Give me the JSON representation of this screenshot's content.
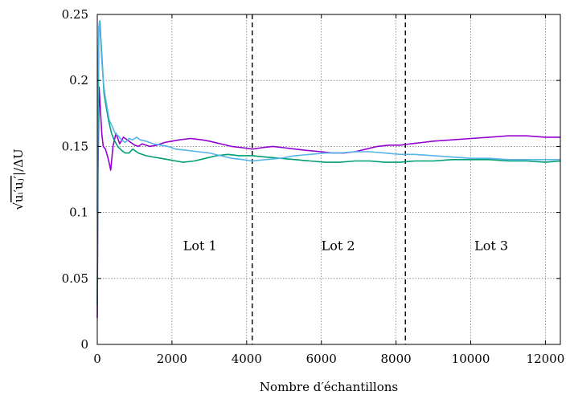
{
  "chart_data": {
    "type": "line",
    "title": "",
    "xlabel": "Nombre d′échantillons",
    "ylabel_parts": {
      "root": "√",
      "bar_content": "uᵢ′uⱼ′",
      "tail": "|/ΔU"
    },
    "xlim": [
      0,
      12400
    ],
    "ylim": [
      0,
      0.25
    ],
    "x_ticks": [
      0,
      2000,
      4000,
      6000,
      8000,
      10000,
      12000
    ],
    "x_tick_labels": [
      "0",
      "2000",
      "4000",
      "6000",
      "8000",
      "10000",
      "12000"
    ],
    "y_ticks": [
      0,
      0.05,
      0.1,
      0.15,
      0.2,
      0.25
    ],
    "y_tick_labels": [
      "0",
      "0.05",
      "0.1",
      "0.15",
      "0.2",
      "0.25"
    ],
    "grid": true,
    "dividers": [
      4150,
      8250
    ],
    "regions": [
      {
        "label": "Lot 1",
        "x": 2750,
        "y": 0.075
      },
      {
        "label": "Lot 2",
        "x": 6450,
        "y": 0.075
      },
      {
        "label": "Lot 3",
        "x": 10550,
        "y": 0.075
      }
    ],
    "series": [
      {
        "color": "#9400d3",
        "x": [
          0,
          20,
          50,
          80,
          120,
          160,
          220,
          300,
          360,
          420,
          500,
          600,
          700,
          800,
          900,
          1000,
          1100,
          1200,
          1400,
          1600,
          1800,
          2000,
          2200,
          2500,
          2800,
          3000,
          3300,
          3600,
          3900,
          4150,
          4400,
          4700,
          5000,
          5300,
          5600,
          6000,
          6300,
          6600,
          6900,
          7200,
          7500,
          7800,
          8100,
          8400,
          8700,
          9000,
          9500,
          10000,
          10500,
          11000,
          11500,
          12000,
          12400
        ],
        "y": [
          0.02,
          0.13,
          0.195,
          0.18,
          0.16,
          0.15,
          0.148,
          0.14,
          0.132,
          0.15,
          0.16,
          0.152,
          0.157,
          0.155,
          0.153,
          0.151,
          0.15,
          0.152,
          0.15,
          0.151,
          0.153,
          0.154,
          0.155,
          0.156,
          0.155,
          0.154,
          0.152,
          0.15,
          0.149,
          0.148,
          0.149,
          0.15,
          0.149,
          0.148,
          0.147,
          0.146,
          0.145,
          0.145,
          0.146,
          0.148,
          0.15,
          0.151,
          0.151,
          0.152,
          0.153,
          0.154,
          0.155,
          0.156,
          0.157,
          0.158,
          0.158,
          0.157,
          0.157
        ]
      },
      {
        "color": "#009e73",
        "x": [
          0,
          20,
          40,
          70,
          100,
          140,
          180,
          240,
          300,
          380,
          450,
          550,
          650,
          750,
          850,
          950,
          1100,
          1300,
          1500,
          1700,
          1900,
          2100,
          2300,
          2600,
          2900,
          3200,
          3500,
          3800,
          4150,
          4500,
          4900,
          5300,
          5700,
          6100,
          6500,
          6900,
          7300,
          7700,
          8100,
          8500,
          9000,
          9500,
          10000,
          10500,
          11000,
          11500,
          12000,
          12400
        ],
        "y": [
          0.03,
          0.15,
          0.24,
          0.245,
          0.23,
          0.21,
          0.19,
          0.18,
          0.17,
          0.16,
          0.155,
          0.15,
          0.147,
          0.145,
          0.145,
          0.148,
          0.145,
          0.143,
          0.142,
          0.141,
          0.14,
          0.139,
          0.138,
          0.139,
          0.141,
          0.143,
          0.144,
          0.143,
          0.143,
          0.142,
          0.141,
          0.14,
          0.139,
          0.138,
          0.138,
          0.139,
          0.139,
          0.138,
          0.138,
          0.139,
          0.139,
          0.14,
          0.14,
          0.14,
          0.139,
          0.139,
          0.138,
          0.139
        ]
      },
      {
        "color": "#56b4e9",
        "x": [
          0,
          20,
          40,
          60,
          90,
          120,
          160,
          200,
          260,
          320,
          400,
          480,
          560,
          650,
          750,
          850,
          950,
          1050,
          1150,
          1300,
          1500,
          1700,
          1900,
          2100,
          2400,
          2700,
          3000,
          3300,
          3600,
          3900,
          4150,
          4500,
          4900,
          5300,
          5700,
          6100,
          6500,
          6900,
          7300,
          7700,
          8100,
          8500,
          9000,
          9500,
          10000,
          10500,
          11000,
          11500,
          12000,
          12400
        ],
        "y": [
          0.1,
          0.2,
          0.24,
          0.245,
          0.23,
          0.215,
          0.2,
          0.19,
          0.18,
          0.17,
          0.165,
          0.16,
          0.158,
          0.155,
          0.153,
          0.156,
          0.155,
          0.157,
          0.155,
          0.154,
          0.152,
          0.151,
          0.15,
          0.148,
          0.147,
          0.146,
          0.145,
          0.143,
          0.141,
          0.14,
          0.139,
          0.14,
          0.141,
          0.143,
          0.144,
          0.145,
          0.145,
          0.146,
          0.146,
          0.145,
          0.144,
          0.144,
          0.143,
          0.142,
          0.141,
          0.141,
          0.14,
          0.14,
          0.14,
          0.14
        ]
      }
    ]
  }
}
